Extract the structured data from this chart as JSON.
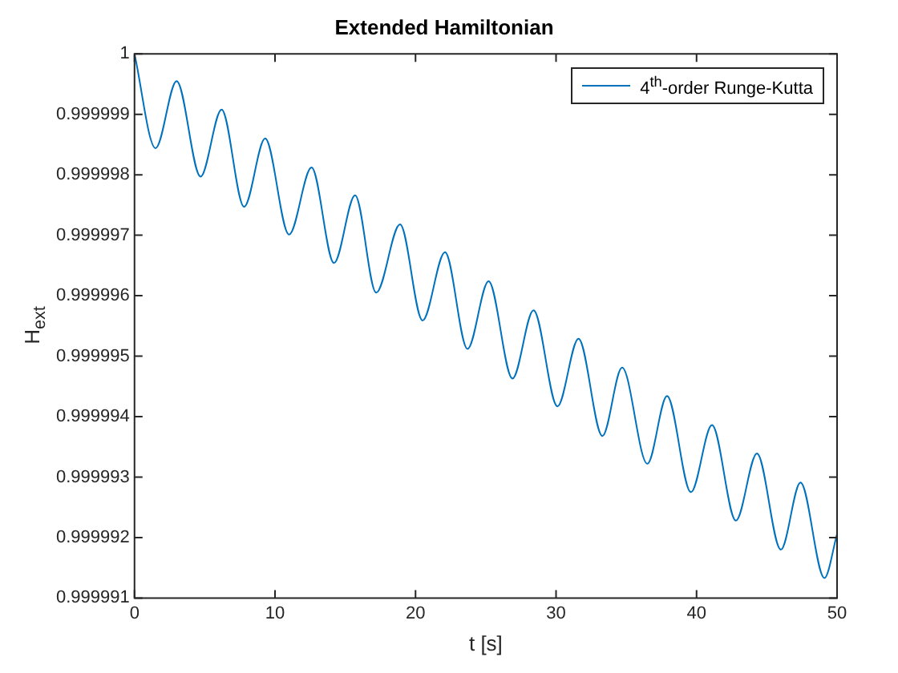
{
  "chart_data": {
    "type": "line",
    "title": "Extended Hamiltonian",
    "xlabel": "t [s]",
    "ylabel": "H$_{ext}$",
    "xlim": [
      0,
      50
    ],
    "xticks": [
      0,
      10,
      20,
      30,
      40,
      50
    ],
    "ylim": [
      0.999991,
      1
    ],
    "yticks": [
      0.999991,
      0.999992,
      0.999993,
      0.999994,
      0.999995,
      0.999996,
      0.999997,
      0.999998,
      0.999999,
      1
    ],
    "grid": false,
    "legend": "top right",
    "marker": "none",
    "line_style": "solid",
    "series": [
      {
        "name": "4$^{th}$-order Runge-Kutta",
        "color": "#0072bd",
        "x": [
          0,
          1.5,
          3.0,
          4.7,
          6.2,
          7.8,
          9.3,
          11.0,
          12.6,
          14.2,
          15.7,
          17.2,
          18.9,
          20.5,
          22.1,
          23.7,
          25.2,
          26.9,
          28.4,
          30.1,
          31.6,
          33.3,
          34.7,
          36.5,
          37.9,
          39.6,
          41.1,
          42.8,
          44.3,
          46.0,
          47.4,
          49.1,
          50
        ],
        "values": [
          1,
          0.99999844,
          0.99999955,
          0.99999797,
          0.99999908,
          0.99999747,
          0.9999986,
          0.99999701,
          0.99999812,
          0.99999654,
          0.99999766,
          0.99999605,
          0.99999718,
          0.99999559,
          0.99999672,
          0.99999512,
          0.99999624,
          0.99999463,
          0.99999576,
          0.99999417,
          0.99999529,
          0.99999368,
          0.99999481,
          0.99999322,
          0.99999434,
          0.99999275,
          0.99999386,
          0.99999228,
          0.99999339,
          0.9999918,
          0.99999291,
          0.99999133,
          0.99999206
        ]
      }
    ]
  }
}
